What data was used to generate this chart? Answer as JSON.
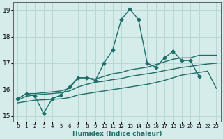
{
  "xlabel": "Humidex (Indice chaleur)",
  "ylabel": "",
  "xlim": [
    -0.5,
    23.5
  ],
  "ylim": [
    14.8,
    19.3
  ],
  "xticks": [
    0,
    1,
    2,
    3,
    4,
    5,
    6,
    7,
    8,
    9,
    10,
    11,
    12,
    13,
    14,
    15,
    16,
    17,
    18,
    19,
    20,
    21,
    22,
    23
  ],
  "yticks": [
    15,
    16,
    17,
    18,
    19
  ],
  "bg_color": "#d5ecea",
  "grid_color": "#b8d8d5",
  "line_color": "#1e6e6a",
  "series": [
    {
      "x": [
        0,
        1,
        2,
        3,
        4,
        5,
        6,
        7,
        8,
        9,
        10,
        11,
        12,
        13,
        14,
        15,
        16,
        17,
        18,
        19,
        20,
        21
      ],
      "y": [
        15.65,
        15.85,
        15.75,
        15.1,
        15.65,
        15.8,
        16.1,
        16.45,
        16.45,
        16.35,
        17.0,
        17.5,
        18.65,
        19.05,
        18.65,
        17.0,
        16.85,
        17.2,
        17.45,
        17.1,
        17.1,
        16.5
      ],
      "marker": "D",
      "markersize": 2.5,
      "linewidth": 1.0
    },
    {
      "x": [
        0,
        1,
        2,
        5,
        6,
        7,
        8,
        9,
        10,
        11,
        12,
        13,
        14,
        15,
        16,
        17,
        18,
        19,
        20,
        21,
        22,
        23
      ],
      "y": [
        15.65,
        15.85,
        15.85,
        15.95,
        16.05,
        16.45,
        16.45,
        16.4,
        16.5,
        16.6,
        16.65,
        16.75,
        16.8,
        16.85,
        16.95,
        17.05,
        17.15,
        17.2,
        17.2,
        17.3,
        17.3,
        17.3
      ],
      "marker": null,
      "markersize": 0,
      "linewidth": 1.0
    },
    {
      "x": [
        0,
        1,
        2,
        5,
        6,
        7,
        8,
        9,
        10,
        11,
        12,
        13,
        14,
        15,
        16,
        17,
        18,
        19,
        20,
        21,
        22,
        23
      ],
      "y": [
        15.6,
        15.75,
        15.8,
        15.88,
        15.95,
        16.1,
        16.2,
        16.28,
        16.32,
        16.38,
        16.42,
        16.5,
        16.55,
        16.6,
        16.65,
        16.72,
        16.78,
        16.84,
        16.88,
        16.93,
        16.97,
        17.0
      ],
      "marker": null,
      "markersize": 0,
      "linewidth": 1.0
    },
    {
      "x": [
        0,
        1,
        2,
        5,
        6,
        7,
        8,
        9,
        10,
        11,
        12,
        13,
        14,
        15,
        16,
        17,
        18,
        19,
        20,
        21,
        22,
        23
      ],
      "y": [
        15.5,
        15.55,
        15.6,
        15.65,
        15.7,
        15.8,
        15.85,
        15.9,
        15.95,
        16.0,
        16.05,
        16.1,
        16.15,
        16.2,
        16.27,
        16.35,
        16.45,
        16.55,
        16.6,
        16.65,
        16.7,
        16.05
      ],
      "marker": null,
      "markersize": 0,
      "linewidth": 1.0
    }
  ]
}
